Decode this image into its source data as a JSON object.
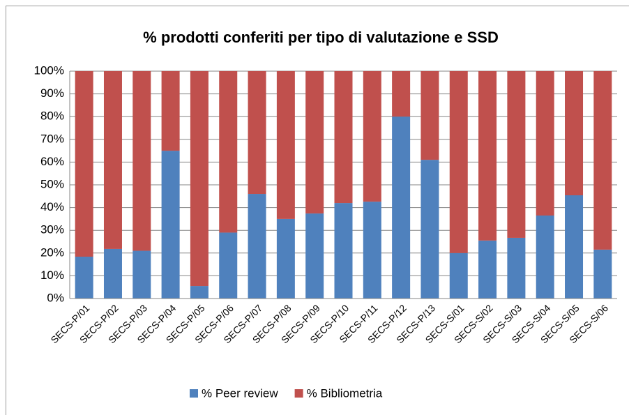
{
  "chart_data": {
    "type": "stacked_bar",
    "title": "% prodotti conferiti per tipo di valutazione e SSD",
    "categories": [
      "SECS-P/01",
      "SECS-P/02",
      "SECS-P/03",
      "SECS-P/04",
      "SECS-P/05",
      "SECS-P/06",
      "SECS-P/07",
      "SECS-P/08",
      "SECS-P/09",
      "SECS-P/10",
      "SECS-P/11",
      "SECS-P/12",
      "SECS-P/13",
      "SECS-S/01",
      "SECS-S/02",
      "SECS-S/03",
      "SECS-S/04",
      "SECS-S/05",
      "SECS-S/06"
    ],
    "series": [
      {
        "name": "% Peer review",
        "color": "#4f81bd",
        "values": [
          18.4,
          21.8,
          21,
          65,
          5.5,
          29,
          46,
          35,
          37.4,
          42,
          42.6,
          80,
          61,
          20,
          25.5,
          26.7,
          36.5,
          45.4,
          21.5
        ]
      },
      {
        "name": "% Bibliometria",
        "color": "#c0504d",
        "values": [
          81.6,
          78.2,
          79,
          35,
          94.5,
          71,
          54,
          65,
          62.6,
          58,
          57.4,
          20,
          39,
          80,
          74.5,
          73.3,
          63.5,
          54.6,
          78.5
        ]
      }
    ],
    "ylim": [
      0,
      100
    ],
    "yticks": [
      {
        "value": 0,
        "label": "0%"
      },
      {
        "value": 10,
        "label": "10%"
      },
      {
        "value": 20,
        "label": "20%"
      },
      {
        "value": 30,
        "label": "30%"
      },
      {
        "value": 40,
        "label": "40%"
      },
      {
        "value": 50,
        "label": "50%"
      },
      {
        "value": 60,
        "label": "60%"
      },
      {
        "value": 70,
        "label": "70%"
      },
      {
        "value": 80,
        "label": "80%"
      },
      {
        "value": 90,
        "label": "90%"
      },
      {
        "value": 100,
        "label": "100%"
      }
    ],
    "grid": true,
    "legend": "bottom"
  }
}
